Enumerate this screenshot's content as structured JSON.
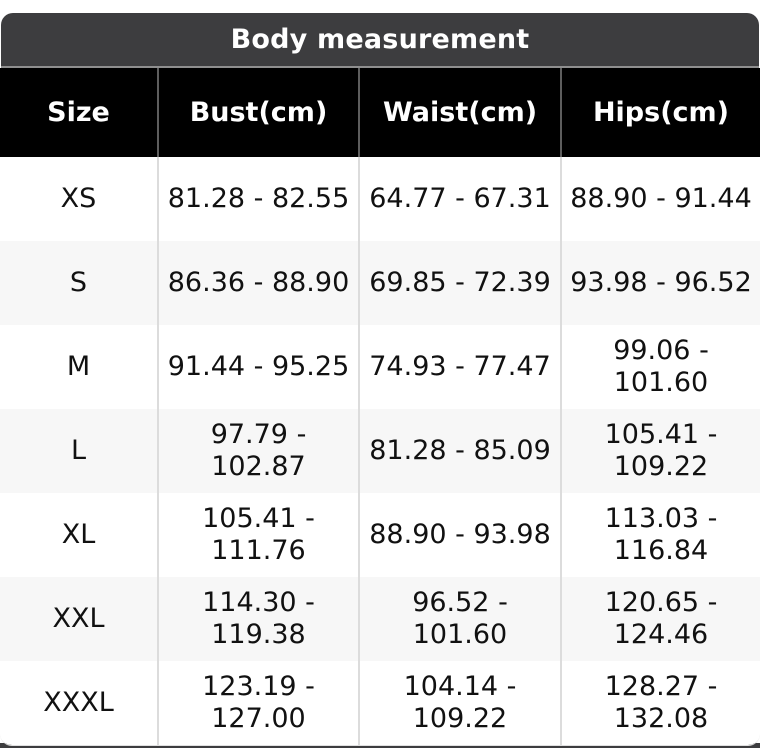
{
  "colors": {
    "title_bar_bg": "#3d3d3f",
    "title_text": "#ffffff",
    "column_header_bg": "#000000",
    "column_header_text": "#ffffff",
    "row_bg": "#ffffff",
    "row_alt_bg": "#f7f7f7",
    "cell_separator": "#dcdcdc",
    "header_separator": "#5e5e5e",
    "body_text": "#111111"
  },
  "size_chart": {
    "title": "Body measurement",
    "columns": [
      "Size",
      "Bust(cm)",
      "Waist(cm)",
      "Hips(cm)"
    ],
    "rows": [
      {
        "size": "XS",
        "bust": "81.28 - 82.55",
        "waist": "64.77 - 67.31",
        "hips": "88.90 - 91.44"
      },
      {
        "size": "S",
        "bust": "86.36 - 88.90",
        "waist": "69.85 - 72.39",
        "hips": "93.98 - 96.52"
      },
      {
        "size": "M",
        "bust": "91.44 - 95.25",
        "waist": "74.93 - 77.47",
        "hips": "99.06 - 101.60"
      },
      {
        "size": "L",
        "bust": "97.79 - 102.87",
        "waist": "81.28 - 85.09",
        "hips": "105.41 - 109.22"
      },
      {
        "size": "XL",
        "bust": "105.41 - 111.76",
        "waist": "88.90 - 93.98",
        "hips": "113.03 - 116.84"
      },
      {
        "size": "XXL",
        "bust": "114.30 - 119.38",
        "waist": "96.52 - 101.60",
        "hips": "120.65 - 124.46"
      },
      {
        "size": "XXXL",
        "bust": "123.19 - 127.00",
        "waist": "104.14 - 109.22",
        "hips": "128.27 - 132.08"
      }
    ]
  }
}
